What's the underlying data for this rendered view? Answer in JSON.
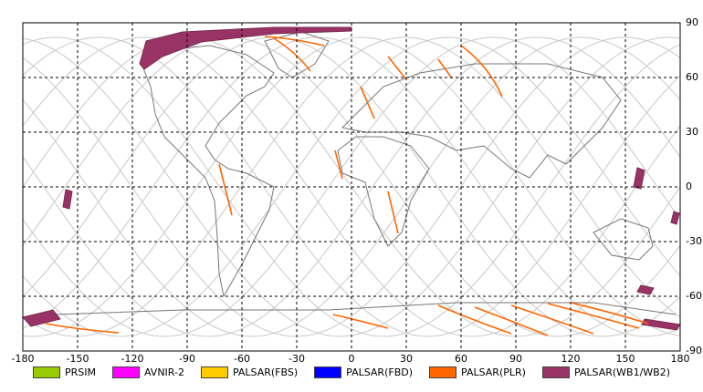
{
  "map": {
    "xlim": [
      -180,
      180
    ],
    "ylim": [
      -90,
      90
    ],
    "xticks": [
      -180,
      -150,
      -120,
      -90,
      -60,
      -30,
      0,
      30,
      60,
      90,
      120,
      150,
      180
    ],
    "yticks": [
      -90,
      -60,
      -30,
      0,
      30,
      60,
      90
    ],
    "legend": [
      {
        "name": "PRSIM",
        "color": "#99cc00"
      },
      {
        "name": "AVNIR-2",
        "color": "#ff00ff"
      },
      {
        "name": "PALSAR(FBS)",
        "color": "#ffcc00"
      },
      {
        "name": "PALSAR(FBD)",
        "color": "#0000ff"
      },
      {
        "name": "PALSAR(PLR)",
        "color": "#ff6600"
      },
      {
        "name": "PALSAR(WB1/WB2)",
        "color": "#993366"
      }
    ]
  }
}
